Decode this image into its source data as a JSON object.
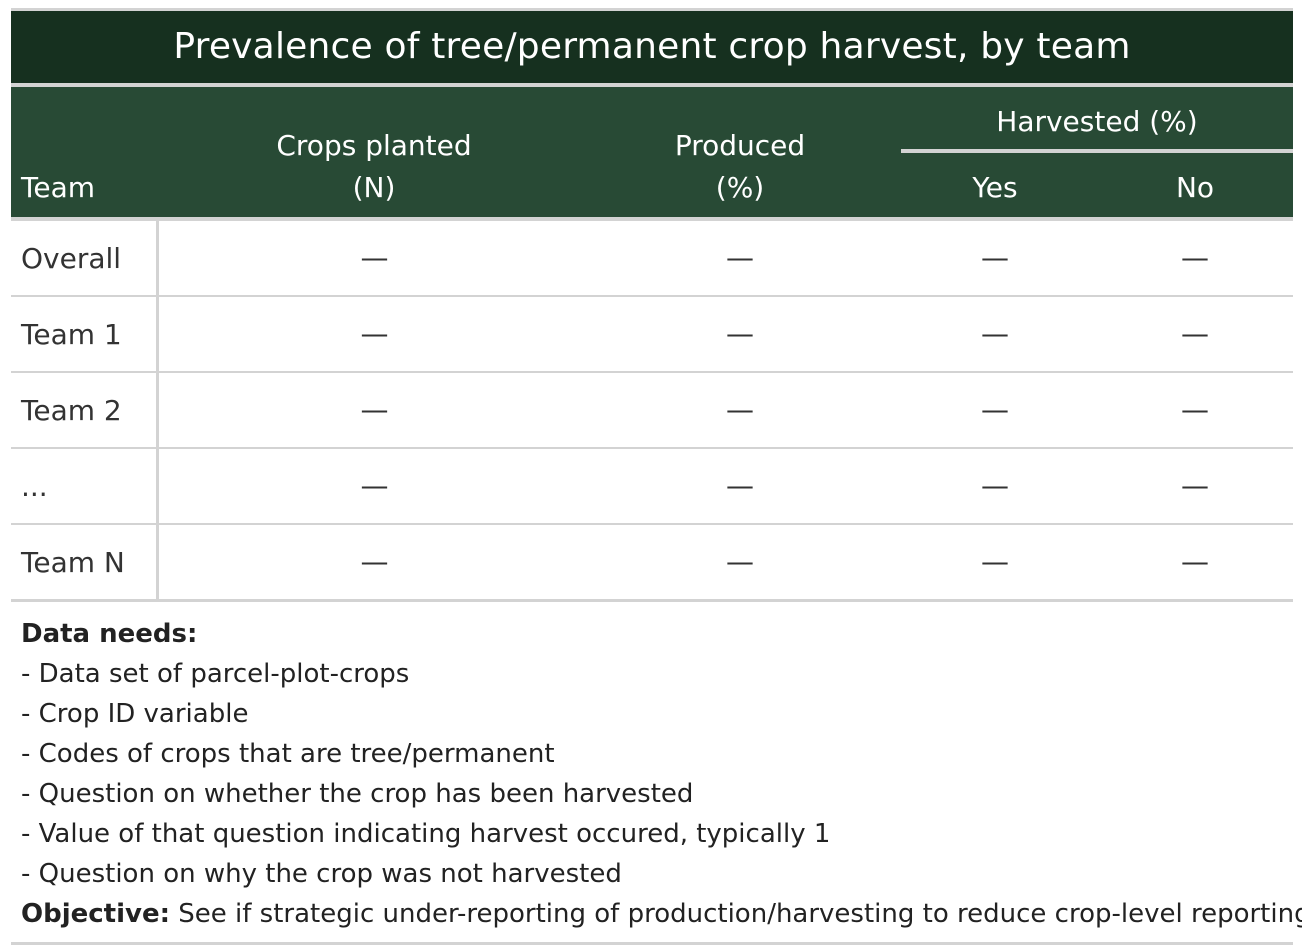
{
  "title": "Prevalence of tree/permanent crop harvest, by team",
  "columns": {
    "team": "Team",
    "crops_planted_line1": "Crops planted",
    "crops_planted_line2": "(N)",
    "produced_line1": "Produced",
    "produced_line2": "(%)",
    "harvested_group": "Harvested (%)",
    "yes": "Yes",
    "no": "No"
  },
  "rows": [
    {
      "team": "Overall",
      "crops_planted": "—",
      "produced": "—",
      "yes": "—",
      "no": "—"
    },
    {
      "team": "Team 1",
      "crops_planted": "—",
      "produced": "—",
      "yes": "—",
      "no": "—"
    },
    {
      "team": "Team 2",
      "crops_planted": "—",
      "produced": "—",
      "yes": "—",
      "no": "—"
    },
    {
      "team": "...",
      "crops_planted": "—",
      "produced": "—",
      "yes": "—",
      "no": "—"
    },
    {
      "team": "Team N",
      "crops_planted": "—",
      "produced": "—",
      "yes": "—",
      "no": "—"
    }
  ],
  "notes": {
    "data_needs_label": "Data needs:",
    "items": [
      "- Data set of parcel-plot-crops",
      "- Crop ID variable",
      "- Codes of crops that are tree/permanent",
      "- Question on whether the crop has been harvested",
      "- Value of that question indicating harvest occured, typically 1",
      "- Question on why the crop was not harvested"
    ],
    "objective_label": "Objective:",
    "objective_text": " See if strategic under-reporting of production/harvesting to reduce crop-level reporting."
  },
  "colors": {
    "title_bg": "#16301f",
    "header_bg": "#284a35",
    "rule": "#d3d3d3"
  }
}
